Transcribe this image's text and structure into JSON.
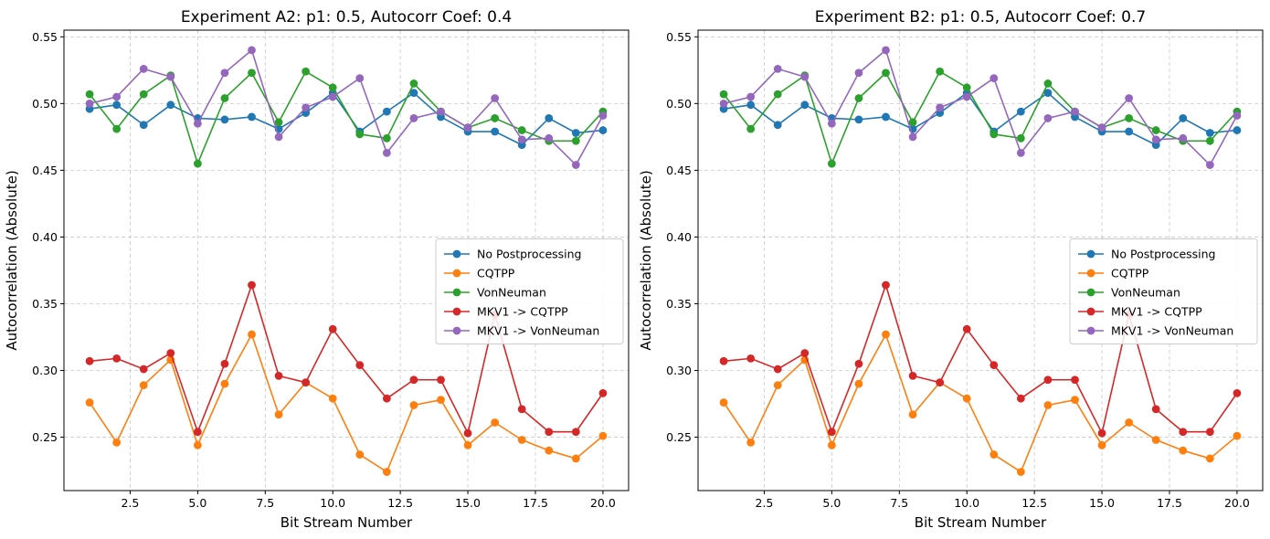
{
  "chart_data": [
    {
      "type": "line",
      "title": "Experiment A2: p1: 0.5, Autocorr Coef: 0.4",
      "xlabel": "Bit Stream Number",
      "ylabel": "Autocorrelation (Absolute)",
      "xlim": [
        0.05,
        20.95
      ],
      "ylim": [
        0.21,
        0.555
      ],
      "xticks": [
        2.5,
        5.0,
        7.5,
        10.0,
        12.5,
        15.0,
        17.5,
        20.0
      ],
      "xtick_labels": [
        "2.5",
        "5.0",
        "7.5",
        "10.0",
        "12.5",
        "15.0",
        "17.5",
        "20.0"
      ],
      "yticks": [
        0.25,
        0.3,
        0.35,
        0.4,
        0.45,
        0.5,
        0.55
      ],
      "ytick_labels": [
        "0.25",
        "0.30",
        "0.35",
        "0.40",
        "0.45",
        "0.50",
        "0.55"
      ],
      "grid": true,
      "legend_position": "center-right",
      "x": [
        1,
        2,
        3,
        4,
        5,
        6,
        7,
        8,
        9,
        10,
        11,
        12,
        13,
        14,
        15,
        16,
        17,
        18,
        19,
        20
      ],
      "series": [
        {
          "name": "No Postprocessing",
          "color": "#1f77b4",
          "values": [
            0.496,
            0.499,
            0.484,
            0.499,
            0.489,
            0.488,
            0.49,
            0.481,
            0.493,
            0.508,
            0.479,
            0.494,
            0.508,
            0.49,
            0.479,
            0.479,
            0.469,
            0.489,
            0.478,
            0.48
          ]
        },
        {
          "name": "CQTPP",
          "color": "#ff7f0e",
          "values": [
            0.276,
            0.246,
            0.289,
            0.308,
            0.244,
            0.29,
            0.327,
            0.267,
            0.291,
            0.279,
            0.237,
            0.224,
            0.274,
            0.278,
            0.244,
            0.261,
            0.248,
            0.24,
            0.234,
            0.251
          ]
        },
        {
          "name": "VonNeuman",
          "color": "#2ca02c",
          "values": [
            0.507,
            0.481,
            0.507,
            0.521,
            0.455,
            0.504,
            0.523,
            0.486,
            0.524,
            0.512,
            0.477,
            0.474,
            0.515,
            0.494,
            0.482,
            0.489,
            0.48,
            0.472,
            0.472,
            0.494
          ]
        },
        {
          "name": "MKV1 -> CQTPP",
          "color": "#d62728",
          "values": [
            0.307,
            0.309,
            0.301,
            0.313,
            0.254,
            0.305,
            0.364,
            0.296,
            0.291,
            0.331,
            0.304,
            0.279,
            0.293,
            0.293,
            0.253,
            0.342,
            0.271,
            0.254,
            0.254,
            0.283
          ]
        },
        {
          "name": "MKV1 -> VonNeuman",
          "color": "#9467bd",
          "values": [
            0.5,
            0.505,
            0.526,
            0.52,
            0.485,
            0.523,
            0.54,
            0.475,
            0.497,
            0.505,
            0.519,
            0.463,
            0.489,
            0.494,
            0.482,
            0.504,
            0.473,
            0.474,
            0.454,
            0.491
          ]
        }
      ]
    },
    {
      "type": "line",
      "title": "Experiment B2: p1: 0.5, Autocorr Coef: 0.7",
      "xlabel": "Bit Stream Number",
      "ylabel": "Autocorrelation (Absolute)",
      "xlim": [
        0.05,
        20.95
      ],
      "ylim": [
        0.21,
        0.555
      ],
      "xticks": [
        2.5,
        5.0,
        7.5,
        10.0,
        12.5,
        15.0,
        17.5,
        20.0
      ],
      "xtick_labels": [
        "2.5",
        "5.0",
        "7.5",
        "10.0",
        "12.5",
        "15.0",
        "17.5",
        "20.0"
      ],
      "yticks": [
        0.25,
        0.3,
        0.35,
        0.4,
        0.45,
        0.5,
        0.55
      ],
      "ytick_labels": [
        "0.25",
        "0.30",
        "0.35",
        "0.40",
        "0.45",
        "0.50",
        "0.55"
      ],
      "grid": true,
      "legend_position": "center-right",
      "x": [
        1,
        2,
        3,
        4,
        5,
        6,
        7,
        8,
        9,
        10,
        11,
        12,
        13,
        14,
        15,
        16,
        17,
        18,
        19,
        20
      ],
      "series": [
        {
          "name": "No Postprocessing",
          "color": "#1f77b4",
          "values": [
            0.496,
            0.499,
            0.484,
            0.499,
            0.489,
            0.488,
            0.49,
            0.481,
            0.493,
            0.508,
            0.479,
            0.494,
            0.508,
            0.49,
            0.479,
            0.479,
            0.469,
            0.489,
            0.478,
            0.48
          ]
        },
        {
          "name": "CQTPP",
          "color": "#ff7f0e",
          "values": [
            0.276,
            0.246,
            0.289,
            0.308,
            0.244,
            0.29,
            0.327,
            0.267,
            0.291,
            0.279,
            0.237,
            0.224,
            0.274,
            0.278,
            0.244,
            0.261,
            0.248,
            0.24,
            0.234,
            0.251
          ]
        },
        {
          "name": "VonNeuman",
          "color": "#2ca02c",
          "values": [
            0.507,
            0.481,
            0.507,
            0.521,
            0.455,
            0.504,
            0.523,
            0.486,
            0.524,
            0.512,
            0.477,
            0.474,
            0.515,
            0.494,
            0.482,
            0.489,
            0.48,
            0.472,
            0.472,
            0.494
          ]
        },
        {
          "name": "MKV1 -> CQTPP",
          "color": "#d62728",
          "values": [
            0.307,
            0.309,
            0.301,
            0.313,
            0.254,
            0.305,
            0.364,
            0.296,
            0.291,
            0.331,
            0.304,
            0.279,
            0.293,
            0.293,
            0.253,
            0.342,
            0.271,
            0.254,
            0.254,
            0.283
          ]
        },
        {
          "name": "MKV1 -> VonNeuman",
          "color": "#9467bd",
          "values": [
            0.5,
            0.505,
            0.526,
            0.52,
            0.485,
            0.523,
            0.54,
            0.475,
            0.497,
            0.505,
            0.519,
            0.463,
            0.489,
            0.494,
            0.482,
            0.504,
            0.473,
            0.474,
            0.454,
            0.491
          ]
        }
      ]
    }
  ]
}
